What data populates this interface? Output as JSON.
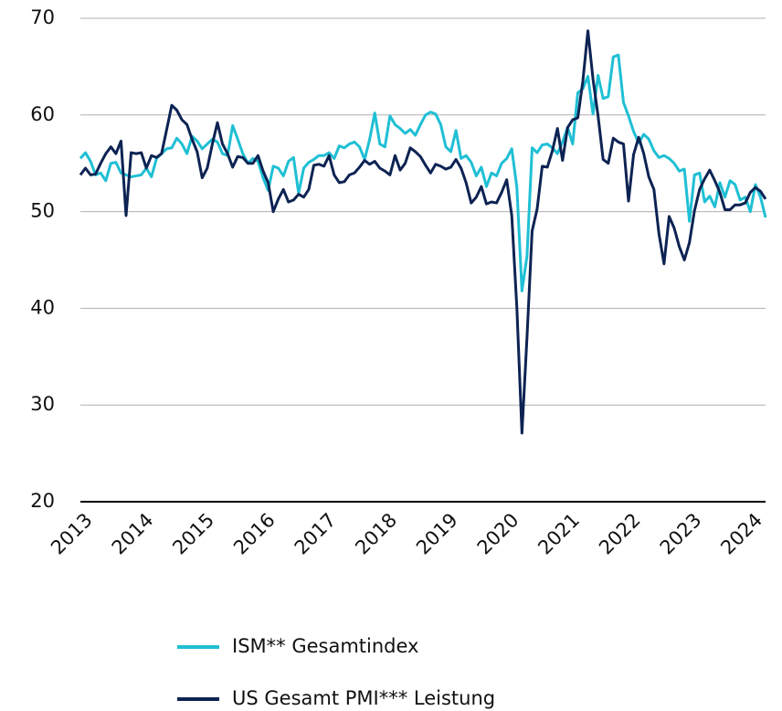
{
  "chart_data": {
    "type": "line",
    "x": [
      2013,
      2013.083,
      2013.167,
      2013.25,
      2013.333,
      2013.417,
      2013.5,
      2013.583,
      2013.667,
      2013.75,
      2013.833,
      2013.917,
      2014,
      2014.083,
      2014.167,
      2014.25,
      2014.333,
      2014.417,
      2014.5,
      2014.583,
      2014.667,
      2014.75,
      2014.833,
      2014.917,
      2015,
      2015.083,
      2015.167,
      2015.25,
      2015.333,
      2015.417,
      2015.5,
      2015.583,
      2015.667,
      2015.75,
      2015.833,
      2015.917,
      2016,
      2016.083,
      2016.167,
      2016.25,
      2016.333,
      2016.417,
      2016.5,
      2016.583,
      2016.667,
      2016.75,
      2016.833,
      2016.917,
      2017,
      2017.083,
      2017.167,
      2017.25,
      2017.333,
      2017.417,
      2017.5,
      2017.583,
      2017.667,
      2017.75,
      2017.833,
      2017.917,
      2018,
      2018.083,
      2018.167,
      2018.25,
      2018.333,
      2018.417,
      2018.5,
      2018.583,
      2018.667,
      2018.75,
      2018.833,
      2018.917,
      2019,
      2019.083,
      2019.167,
      2019.25,
      2019.333,
      2019.417,
      2019.5,
      2019.583,
      2019.667,
      2019.75,
      2019.833,
      2019.917,
      2020,
      2020.083,
      2020.167,
      2020.25,
      2020.333,
      2020.417,
      2020.5,
      2020.583,
      2020.667,
      2020.75,
      2020.833,
      2020.917,
      2021,
      2021.083,
      2021.167,
      2021.25,
      2021.333,
      2021.417,
      2021.5,
      2021.583,
      2021.667,
      2021.75,
      2021.833,
      2021.917,
      2022,
      2022.083,
      2022.167,
      2022.25,
      2022.333,
      2022.417,
      2022.5,
      2022.583,
      2022.667,
      2022.75,
      2022.833,
      2022.917,
      2023,
      2023.083,
      2023.167,
      2023.25,
      2023.333,
      2023.417,
      2023.5,
      2023.583,
      2023.667,
      2023.75,
      2023.833,
      2023.917,
      2024,
      2024.083,
      2024.167,
      2024.25
    ],
    "series": [
      {
        "name": "ISM** Gesamtindex",
        "color": "#1fbfd4",
        "values": [
          55.5,
          56.1,
          55.2,
          53.8,
          54.0,
          53.2,
          55.0,
          55.1,
          54.0,
          53.8,
          53.6,
          53.7,
          53.8,
          54.5,
          53.6,
          55.5,
          56.0,
          56.5,
          56.6,
          57.6,
          57.0,
          56.0,
          57.8,
          57.3,
          56.5,
          57.0,
          57.5,
          57.2,
          56.0,
          55.8,
          58.9,
          57.5,
          56.0,
          55.0,
          55.5,
          55.2,
          53.5,
          52.2,
          54.7,
          54.5,
          53.7,
          55.2,
          55.6,
          51.9,
          54.5,
          55.1,
          55.4,
          55.8,
          55.8,
          56.1,
          55.5,
          56.8,
          56.6,
          57.0,
          57.2,
          56.7,
          55.4,
          57.5,
          60.2,
          57.0,
          56.7,
          59.9,
          59.0,
          58.6,
          58.1,
          58.5,
          57.9,
          59.0,
          60.0,
          60.3,
          60.1,
          59.0,
          56.7,
          56.2,
          58.4,
          55.5,
          55.8,
          55.1,
          53.7,
          54.6,
          52.6,
          54.0,
          53.7,
          55.0,
          55.5,
          56.5,
          52.5,
          41.8,
          45.4,
          56.6,
          56.1,
          56.9,
          57.0,
          56.6,
          56.0,
          57.2,
          58.7,
          57.0,
          62.3,
          62.7,
          64.0,
          60.1,
          64.1,
          61.7,
          61.9,
          66.0,
          66.2,
          61.3,
          59.9,
          58.3,
          57.1,
          58.0,
          57.5,
          56.3,
          55.6,
          55.8,
          55.5,
          55.0,
          54.2,
          54.4,
          49.0,
          53.8,
          54.0,
          51.0,
          51.6,
          50.5,
          53.0,
          51.5,
          53.2,
          52.8,
          51.2,
          51.5,
          50.0,
          52.8,
          51.5,
          49.4
        ]
      },
      {
        "name": "US Gesamt PMI*** Leistung",
        "color": "#0d2353",
        "values": [
          53.8,
          54.5,
          53.8,
          53.9,
          55.0,
          56.0,
          56.7,
          56.0,
          57.3,
          49.6,
          56.1,
          56.0,
          56.1,
          54.5,
          55.8,
          55.6,
          56.0,
          58.5,
          61.0,
          60.5,
          59.5,
          59.0,
          57.5,
          56.2,
          53.5,
          54.5,
          57.0,
          59.2,
          57.0,
          56.0,
          54.6,
          55.7,
          55.6,
          55.0,
          55.0,
          55.8,
          54.2,
          53.0,
          50.0,
          51.3,
          52.3,
          51.0,
          51.2,
          51.8,
          51.5,
          52.3,
          54.8,
          54.9,
          54.7,
          55.8,
          53.8,
          53.0,
          53.1,
          53.8,
          54.0,
          54.6,
          55.3,
          54.9,
          55.2,
          54.5,
          54.2,
          53.8,
          55.8,
          54.3,
          55.0,
          56.6,
          56.2,
          55.7,
          54.8,
          54.0,
          54.9,
          54.7,
          54.4,
          54.6,
          55.4,
          54.5,
          53.0,
          50.9,
          51.5,
          52.6,
          50.8,
          51.0,
          50.9,
          52.0,
          53.3,
          49.6,
          40.0,
          27.1,
          37.0,
          48.0,
          50.3,
          54.7,
          54.6,
          56.3,
          58.6,
          55.3,
          58.7,
          59.5,
          59.7,
          63.5,
          68.7,
          63.7,
          59.9,
          55.4,
          55.0,
          57.6,
          57.2,
          57.0,
          51.1,
          55.9,
          57.7,
          56.0,
          53.6,
          52.3,
          47.7,
          44.6,
          49.5,
          48.3,
          46.4,
          45.0,
          46.8,
          50.1,
          52.3,
          53.4,
          54.3,
          53.2,
          52.0,
          50.2,
          50.2,
          50.7,
          50.7,
          50.9,
          52.0,
          52.5,
          52.1,
          51.3
        ]
      }
    ],
    "xlim": [
      2013,
      2024.25
    ],
    "xticks": [
      2013,
      2014,
      2015,
      2016,
      2017,
      2018,
      2019,
      2020,
      2021,
      2022,
      2023,
      2024
    ],
    "ylim": [
      20,
      70
    ],
    "yticks": [
      20,
      30,
      40,
      50,
      60,
      70
    ],
    "grid": true,
    "legend": "bottom"
  }
}
